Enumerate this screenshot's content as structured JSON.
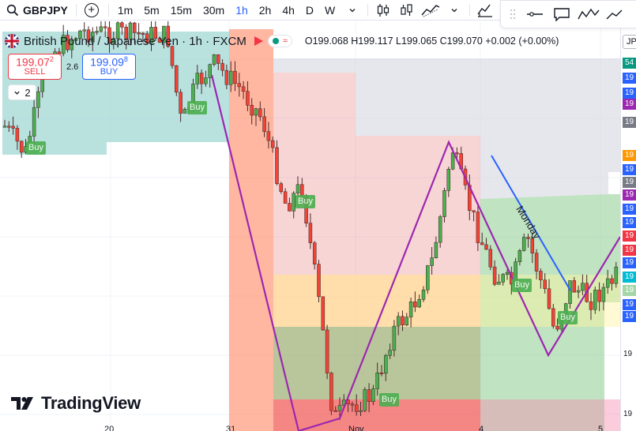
{
  "toolbar": {
    "symbol": "GBPJPY",
    "intervals": [
      "1m",
      "5m",
      "15m",
      "30m",
      "1h",
      "2h",
      "4h",
      "D",
      "W"
    ],
    "active_interval": "1h",
    "icons": [
      "search-icon",
      "add-symbol-icon",
      "chevron-down-icon",
      "candles-icon",
      "bars-icon",
      "area-icon",
      "chevron-down-icon",
      "indicators-icon"
    ]
  },
  "drawing_tools": [
    "grip-icon",
    "horizontal-line-icon",
    "comment-icon",
    "trend-icon",
    "arrow-icon"
  ],
  "legend": {
    "title": "British Pound / Japanese Yen · 1h · FXCM",
    "ohlc": "O199.068 H199.117 L199.065 C199.070 +0.002 (+0.00%)",
    "pill_text": "≈"
  },
  "trade": {
    "sell_price": "199.07",
    "sell_price_small": "2",
    "sell_label": "SELL",
    "spread": "2.6",
    "buy_price": "199.09",
    "buy_price_small": "8",
    "buy_label": "BUY",
    "quantity": "2"
  },
  "annotations": {
    "monday_label": "Monday",
    "buy_labels": [
      "Buy",
      "Buy",
      "Buy",
      "Buy",
      "Buy",
      "Buy"
    ]
  },
  "time_axis": [
    "20",
    "31",
    "Nov",
    "4",
    "5"
  ],
  "price_axis": {
    "top_label": "JP",
    "tags": [
      {
        "text": "54",
        "color": "#089981"
      },
      {
        "text": "19",
        "color": "#2962ff"
      },
      {
        "text": "19",
        "color": "#2962ff"
      },
      {
        "text": "19",
        "color": "#9c27b0"
      },
      {
        "text": "19",
        "color": "#787b86"
      },
      {
        "text": "19",
        "color": "#ff9800"
      },
      {
        "text": "19",
        "color": "#2962ff"
      },
      {
        "text": "19",
        "color": "#787b86"
      },
      {
        "text": "19",
        "color": "#9c27b0"
      },
      {
        "text": "19",
        "color": "#2962ff"
      },
      {
        "text": "19",
        "color": "#2962ff"
      },
      {
        "text": "19",
        "color": "#f23645"
      },
      {
        "text": "19",
        "color": "#f23645"
      },
      {
        "text": "19",
        "color": "#2962ff"
      },
      {
        "text": "19",
        "color": "#00bcd4"
      },
      {
        "text": "19",
        "color": "#a5d6a7"
      },
      {
        "text": "19",
        "color": "#2962ff"
      },
      {
        "text": "19",
        "color": "#2962ff"
      }
    ],
    "plain_labels": [
      "19",
      "19"
    ]
  },
  "logo_text": "TradingView",
  "colors": {
    "bull": "#4caf50",
    "bear": "#f44336",
    "accent": "#2962ff",
    "zigzag": "#9c27b0"
  }
}
